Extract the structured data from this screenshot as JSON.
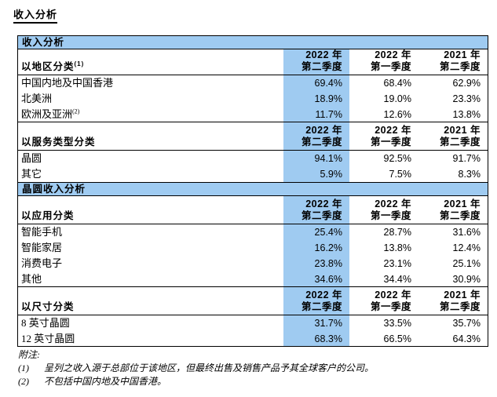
{
  "title": "收入分析",
  "colors": {
    "highlight_blue": "#9FCBF1",
    "border": "#000000",
    "background": "#FFFFFF"
  },
  "table": {
    "band1": "收入分析",
    "band2": "晶圆收入分析",
    "quarters": [
      {
        "year": "2022 年",
        "q": "第二季度"
      },
      {
        "year": "2022 年",
        "q": "第一季度"
      },
      {
        "year": "2021 年",
        "q": "第二季度"
      }
    ],
    "groups": [
      {
        "header": "以地区分类",
        "sup": "(1)",
        "rows": [
          {
            "label": "中国内地及中国香港",
            "sup": "",
            "v": [
              "69.4%",
              "68.4%",
              "62.9%"
            ]
          },
          {
            "label": "北美洲",
            "sup": "",
            "v": [
              "18.9%",
              "19.0%",
              "23.3%"
            ]
          },
          {
            "label": "欧洲及亚洲",
            "sup": "(2)",
            "v": [
              "11.7%",
              "12.6%",
              "13.8%"
            ]
          }
        ]
      },
      {
        "header": "以服务类型分类",
        "sup": "",
        "rows": [
          {
            "label": "晶圆",
            "sup": "",
            "v": [
              "94.1%",
              "92.5%",
              "91.7%"
            ]
          },
          {
            "label": "其它",
            "sup": "",
            "v": [
              "5.9%",
              "7.5%",
              "8.3%"
            ]
          }
        ]
      },
      {
        "header": "以应用分类",
        "sup": "",
        "rows": [
          {
            "label": "智能手机",
            "sup": "",
            "v": [
              "25.4%",
              "28.7%",
              "31.6%"
            ]
          },
          {
            "label": "智能家居",
            "sup": "",
            "v": [
              "16.2%",
              "13.8%",
              "12.4%"
            ]
          },
          {
            "label": "消费电子",
            "sup": "",
            "v": [
              "23.8%",
              "23.1%",
              "25.1%"
            ]
          },
          {
            "label": "其他",
            "sup": "",
            "v": [
              "34.6%",
              "34.4%",
              "30.9%"
            ]
          }
        ]
      },
      {
        "header": "以尺寸分类",
        "sup": "",
        "rows": [
          {
            "label": "8 英寸晶圆",
            "sup": "",
            "v": [
              "31.7%",
              "33.5%",
              "35.7%"
            ]
          },
          {
            "label": "12 英寸晶圆",
            "sup": "",
            "v": [
              "68.3%",
              "66.5%",
              "64.3%"
            ]
          }
        ]
      }
    ]
  },
  "footnotes": {
    "heading": "附注:",
    "items": [
      {
        "num": "(1)",
        "text": "呈列之收入源于总部位于该地区，但最终出售及销售产品予其全球客户的公司。"
      },
      {
        "num": "(2)",
        "text": "不包括中国内地及中国香港。"
      }
    ]
  }
}
